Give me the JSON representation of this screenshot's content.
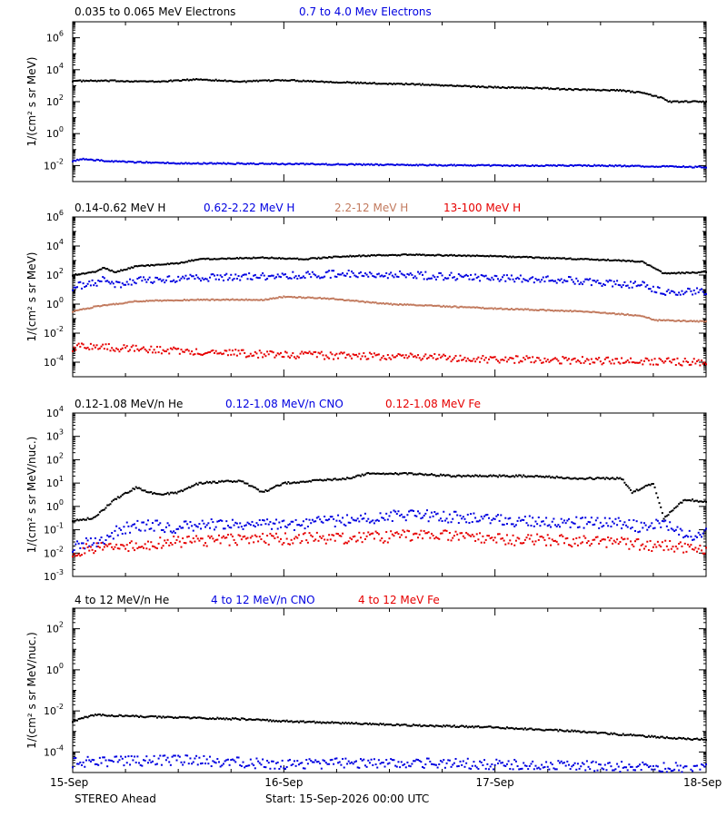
{
  "colors": {
    "black": "#000000",
    "blue": "#0000e0",
    "tan": "#c27a5e",
    "red": "#e60000"
  },
  "x_axis": {
    "ticks": [
      {
        "x": 0,
        "label": "15-Sep"
      },
      {
        "x": 1,
        "label": "16-Sep"
      },
      {
        "x": 2,
        "label": "17-Sep"
      },
      {
        "x": 3,
        "label": "18-Sep"
      }
    ]
  },
  "footer": {
    "left": "STEREO Ahead",
    "center": "Start: 15-Sep-2026 00:00 UTC"
  },
  "chart_data": [
    {
      "type": "scatter",
      "ylabel": "1/(cm² s sr MeV)",
      "yscale": "log",
      "ylim_exp": [
        -3,
        7
      ],
      "y_ticks_exp": [
        -2,
        0,
        2,
        4,
        6
      ],
      "x_units": "days since 15-Sep 00:00",
      "xlim": [
        0,
        3
      ],
      "series": [
        {
          "name": "0.035 to 0.065 MeV Electrons",
          "color": "black",
          "points": [
            [
              0,
              3.3
            ],
            [
              0.2,
              3.3
            ],
            [
              0.4,
              3.25
            ],
            [
              0.6,
              3.4
            ],
            [
              0.8,
              3.25
            ],
            [
              1.0,
              3.35
            ],
            [
              1.2,
              3.25
            ],
            [
              1.4,
              3.15
            ],
            [
              1.6,
              3.1
            ],
            [
              1.8,
              3.0
            ],
            [
              2.0,
              2.9
            ],
            [
              2.2,
              2.85
            ],
            [
              2.4,
              2.75
            ],
            [
              2.6,
              2.7
            ],
            [
              2.7,
              2.55
            ],
            [
              2.8,
              2.2
            ],
            [
              2.82,
              2.0
            ],
            [
              3.0,
              2.0
            ]
          ]
        },
        {
          "name": "0.7 to 4.0 Mev Electrons",
          "color": "blue",
          "points": [
            [
              0,
              -1.7
            ],
            [
              0.05,
              -1.6
            ],
            [
              0.2,
              -1.75
            ],
            [
              0.5,
              -1.85
            ],
            [
              1.0,
              -1.9
            ],
            [
              1.5,
              -1.95
            ],
            [
              2.0,
              -2.0
            ],
            [
              2.5,
              -2.0
            ],
            [
              3.0,
              -2.1
            ]
          ]
        }
      ]
    },
    {
      "type": "scatter",
      "ylabel": "1/(cm² s sr MeV)",
      "yscale": "log",
      "ylim_exp": [
        -5,
        6
      ],
      "y_ticks_exp": [
        -4,
        -2,
        0,
        2,
        4,
        6
      ],
      "x_units": "days since 15-Sep 00:00",
      "xlim": [
        0,
        3
      ],
      "series": [
        {
          "name": "0.14-0.62 MeV H",
          "color": "black",
          "points": [
            [
              0,
              2.0
            ],
            [
              0.1,
              2.2
            ],
            [
              0.15,
              2.5
            ],
            [
              0.2,
              2.2
            ],
            [
              0.3,
              2.6
            ],
            [
              0.5,
              2.8
            ],
            [
              0.6,
              3.1
            ],
            [
              0.9,
              3.2
            ],
            [
              1.1,
              3.1
            ],
            [
              1.3,
              3.3
            ],
            [
              1.6,
              3.4
            ],
            [
              2.0,
              3.3
            ],
            [
              2.4,
              3.1
            ],
            [
              2.6,
              3.0
            ],
            [
              2.7,
              2.9
            ],
            [
              2.75,
              2.5
            ],
            [
              2.8,
              2.1
            ],
            [
              3.0,
              2.2
            ]
          ]
        },
        {
          "name": "0.62-2.22 MeV H",
          "color": "blue",
          "points": [
            [
              0,
              1.2
            ],
            [
              0.1,
              1.4
            ],
            [
              0.15,
              1.7
            ],
            [
              0.2,
              1.3
            ],
            [
              0.3,
              1.6
            ],
            [
              0.6,
              1.8
            ],
            [
              0.9,
              1.9
            ],
            [
              1.3,
              2.1
            ],
            [
              1.6,
              2.0
            ],
            [
              2.0,
              1.8
            ],
            [
              2.4,
              1.6
            ],
            [
              2.7,
              1.3
            ],
            [
              2.8,
              0.8
            ],
            [
              3.0,
              0.9
            ]
          ]
        },
        {
          "name": "2.2-12 MeV H",
          "color": "tan",
          "points": [
            [
              0,
              -0.5
            ],
            [
              0.1,
              -0.2
            ],
            [
              0.3,
              0.2
            ],
            [
              0.6,
              0.3
            ],
            [
              0.9,
              0.3
            ],
            [
              1.0,
              0.5
            ],
            [
              1.2,
              0.4
            ],
            [
              1.5,
              0.0
            ],
            [
              2.0,
              -0.3
            ],
            [
              2.4,
              -0.5
            ],
            [
              2.7,
              -0.8
            ],
            [
              2.75,
              -1.1
            ],
            [
              3.0,
              -1.2
            ]
          ]
        },
        {
          "name": "13-100 MeV H",
          "color": "red",
          "points": [
            [
              0,
              -3.0
            ],
            [
              0.1,
              -2.9
            ],
            [
              0.3,
              -3.1
            ],
            [
              0.6,
              -3.3
            ],
            [
              1.0,
              -3.5
            ],
            [
              1.5,
              -3.6
            ],
            [
              2.0,
              -3.8
            ],
            [
              2.5,
              -3.9
            ],
            [
              3.0,
              -4.0
            ]
          ]
        }
      ]
    },
    {
      "type": "scatter",
      "ylabel": "1/(cm² s sr MeV/nuc.)",
      "yscale": "log",
      "ylim_exp": [
        -3,
        4
      ],
      "y_ticks_exp": [
        -3,
        -2,
        -1,
        0,
        1,
        2,
        3,
        4
      ],
      "x_units": "days since 15-Sep 00:00",
      "xlim": [
        0,
        3
      ],
      "series": [
        {
          "name": "0.12-1.08 MeV/n He",
          "color": "black",
          "points": [
            [
              0,
              -0.6
            ],
            [
              0.1,
              -0.5
            ],
            [
              0.2,
              0.3
            ],
            [
              0.3,
              0.8
            ],
            [
              0.4,
              0.5
            ],
            [
              0.5,
              0.6
            ],
            [
              0.6,
              1.0
            ],
            [
              0.8,
              1.1
            ],
            [
              0.9,
              0.6
            ],
            [
              1.0,
              1.0
            ],
            [
              1.3,
              1.2
            ],
            [
              1.4,
              1.4
            ],
            [
              1.6,
              1.4
            ],
            [
              1.8,
              1.3
            ],
            [
              2.0,
              1.3
            ],
            [
              2.2,
              1.3
            ],
            [
              2.4,
              1.2
            ],
            [
              2.6,
              1.2
            ],
            [
              2.65,
              0.6
            ],
            [
              2.7,
              0.8
            ],
            [
              2.75,
              1.0
            ],
            [
              2.8,
              -0.5
            ],
            [
              2.9,
              0.3
            ],
            [
              3.0,
              0.2
            ]
          ]
        },
        {
          "name": "0.12-1.08 MeV/n CNO",
          "color": "blue",
          "points": [
            [
              0,
              -1.7
            ],
            [
              0.15,
              -1.5
            ],
            [
              0.2,
              -1.1
            ],
            [
              0.3,
              -0.8
            ],
            [
              0.5,
              -0.9
            ],
            [
              0.6,
              -0.8
            ],
            [
              0.8,
              -0.8
            ],
            [
              1.0,
              -0.8
            ],
            [
              1.3,
              -0.6
            ],
            [
              1.5,
              -0.4
            ],
            [
              1.7,
              -0.4
            ],
            [
              2.0,
              -0.6
            ],
            [
              2.4,
              -0.7
            ],
            [
              2.6,
              -0.7
            ],
            [
              2.7,
              -0.9
            ],
            [
              2.8,
              -0.7
            ],
            [
              2.9,
              -1.3
            ],
            [
              3.0,
              -1.2
            ]
          ]
        },
        {
          "name": "0.12-1.08 MeV Fe",
          "color": "red",
          "points": [
            [
              0,
              -1.9
            ],
            [
              0.5,
              -1.5
            ],
            [
              1.0,
              -1.4
            ],
            [
              1.5,
              -1.3
            ],
            [
              1.7,
              -1.2
            ],
            [
              2.0,
              -1.4
            ],
            [
              2.5,
              -1.5
            ],
            [
              2.8,
              -1.7
            ],
            [
              3.0,
              -1.8
            ]
          ]
        }
      ]
    },
    {
      "type": "scatter",
      "ylabel": "1/(cm² s sr MeV/nuc.)",
      "yscale": "log",
      "ylim_exp": [
        -5,
        3
      ],
      "y_ticks_exp": [
        -4,
        -2,
        0,
        2
      ],
      "x_units": "days since 15-Sep 00:00",
      "xlim": [
        0,
        3
      ],
      "series": [
        {
          "name": "4 to 12 MeV/n He",
          "color": "black",
          "points": [
            [
              0,
              -2.5
            ],
            [
              0.1,
              -2.2
            ],
            [
              0.4,
              -2.3
            ],
            [
              0.8,
              -2.4
            ],
            [
              1.0,
              -2.5
            ],
            [
              1.3,
              -2.6
            ],
            [
              1.6,
              -2.7
            ],
            [
              2.0,
              -2.8
            ],
            [
              2.4,
              -3.0
            ],
            [
              2.8,
              -3.3
            ],
            [
              3.0,
              -3.4
            ]
          ]
        },
        {
          "name": "4 to 12 MeV/n CNO",
          "color": "blue",
          "points": [
            [
              0,
              -4.5
            ],
            [
              0.5,
              -4.4
            ],
            [
              1.0,
              -4.6
            ],
            [
              1.5,
              -4.5
            ],
            [
              2.0,
              -4.6
            ],
            [
              2.5,
              -4.7
            ],
            [
              3.0,
              -4.8
            ]
          ]
        },
        {
          "name": "4 to 12 MeV Fe",
          "color": "red",
          "points": []
        }
      ]
    }
  ]
}
